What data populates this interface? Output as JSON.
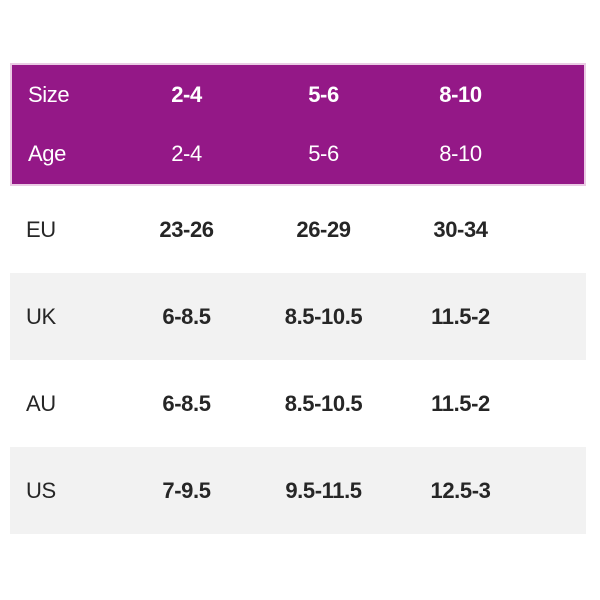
{
  "colors": {
    "header_bg": "#941887",
    "header_border": "#EACBE4",
    "row_alt_bg": "#F2F2F2",
    "body_text": "#262626",
    "header_text": "#FFFFFF",
    "page_bg": "#FFFFFF"
  },
  "chart_data": {
    "type": "table",
    "header_rows": [
      {
        "label": "Size",
        "values": [
          "2-4",
          "5-6",
          "8-10"
        ]
      },
      {
        "label": "Age",
        "values": [
          "2-4",
          "5-6",
          "8-10"
        ]
      }
    ],
    "rows": [
      {
        "label": "EU",
        "values": [
          "23-26",
          "26-29",
          "30-34"
        ]
      },
      {
        "label": "UK",
        "values": [
          "6-8.5",
          "8.5-10.5",
          "11.5-2"
        ]
      },
      {
        "label": "AU",
        "values": [
          "6-8.5",
          "8.5-10.5",
          "11.5-2"
        ]
      },
      {
        "label": "US",
        "values": [
          "7-9.5",
          "9.5-11.5",
          "12.5-3"
        ]
      }
    ]
  }
}
